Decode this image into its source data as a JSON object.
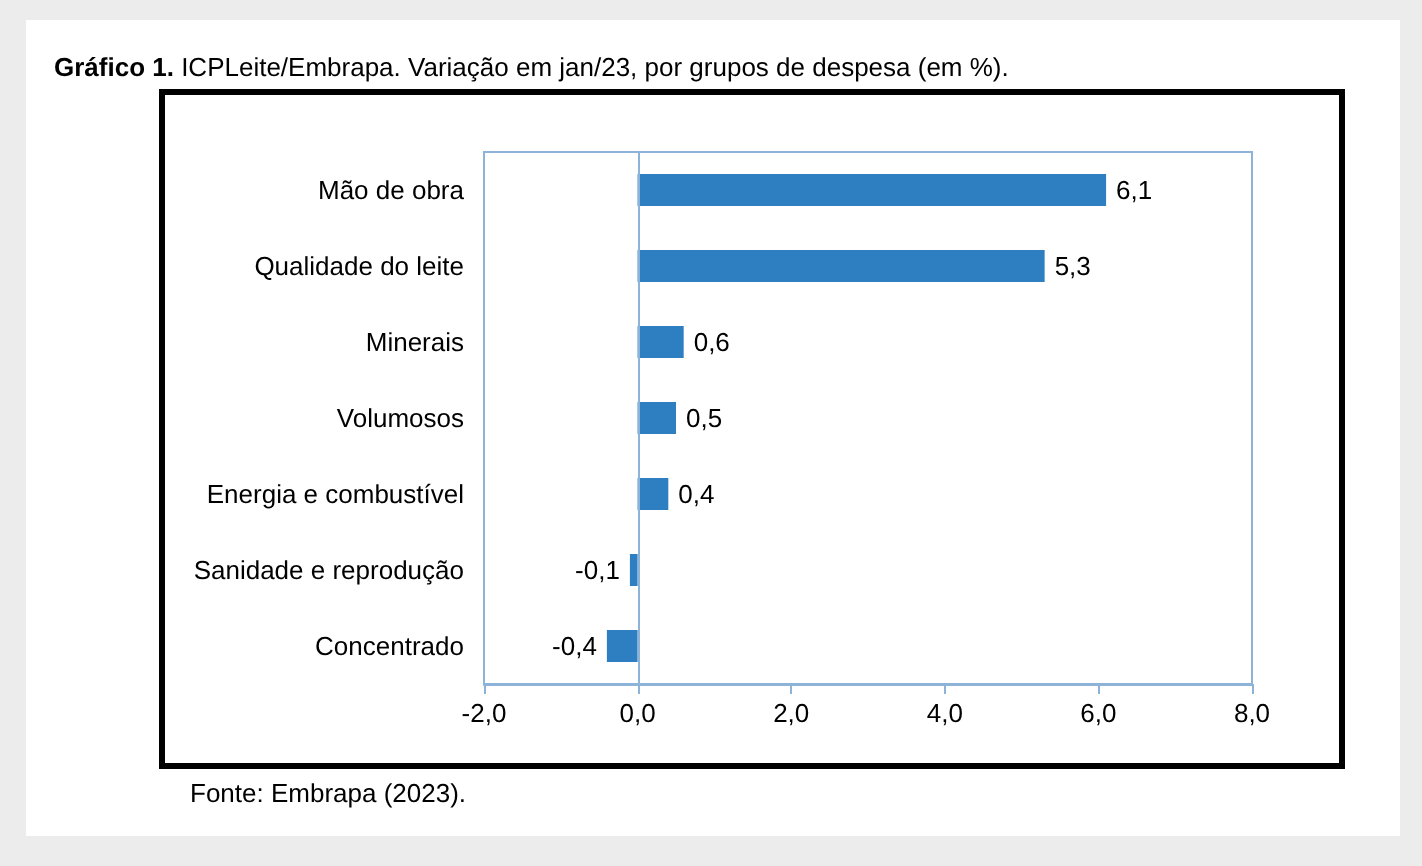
{
  "chart_data": {
    "type": "bar",
    "orientation": "horizontal",
    "title": "Gráfico 1. ICPLeite/Embrapa. Variação em jan/23, por grupos de despesa (em %).",
    "categories": [
      "Mão de obra",
      "Qualidade do leite",
      "Minerais",
      "Volumosos",
      "Energia e combustível",
      "Sanidade e reprodução",
      "Concentrado"
    ],
    "values": [
      6.1,
      5.3,
      0.6,
      0.5,
      0.4,
      -0.1,
      -0.4
    ],
    "value_labels": [
      "6,1",
      "5,3",
      "0,6",
      "0,5",
      "0,4",
      "-0,1",
      "-0,4"
    ],
    "color": "#2e7fc1",
    "xlim": [
      -2,
      8
    ],
    "xticks": [
      {
        "value": -2,
        "label": "-2,0"
      },
      {
        "value": 0,
        "label": "0,0"
      },
      {
        "value": 2,
        "label": "2,0"
      },
      {
        "value": 4,
        "label": "4,0"
      },
      {
        "value": 6,
        "label": "6,0"
      },
      {
        "value": 8,
        "label": "8,0"
      }
    ],
    "grid": false,
    "ref_lines": [
      {
        "axis": "x",
        "value": 0,
        "color": "#8db3d9"
      }
    ],
    "annotations": [
      "Fonte: Embrapa (2023)."
    ]
  }
}
